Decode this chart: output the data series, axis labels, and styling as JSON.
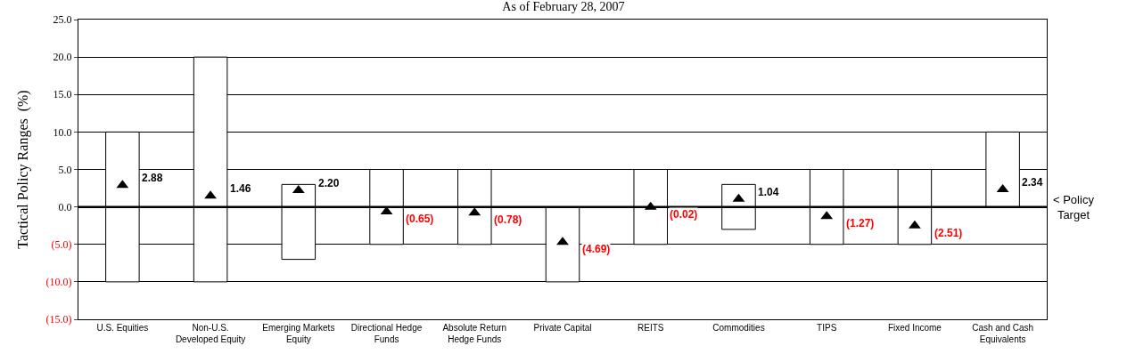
{
  "chart_data": {
    "type": "bar",
    "title": "As of February 28, 2007",
    "ylabel": "Tactical Policy Ranges  (%)",
    "categories": [
      "U.S. Equities",
      "Non-U.S.\nDeveloped Equity",
      "Emerging Markets\nEquity",
      "Directional Hedge\nFunds",
      "Absolute Return\nHedge Funds",
      "Private Capital",
      "REITS",
      "Commodities",
      "TIPS",
      "Fixed Income",
      "Cash and Cash\nEquivalents"
    ],
    "series": [
      {
        "color": "#ffffff",
        "base": [
          -10,
          -10,
          -7,
          -5,
          -5,
          -10,
          -5,
          -3,
          -5,
          -5,
          0
        ],
        "values": [
          20,
          30,
          10,
          10,
          10,
          10,
          10,
          6,
          10,
          10,
          10
        ]
      },
      {
        "type": "scatter",
        "color": "#000000",
        "marker": "triangle",
        "values": [
          2.88,
          1.46,
          2.2,
          -0.65,
          -0.78,
          -4.69,
          -0.02,
          1.04,
          -1.27,
          -2.51,
          2.34
        ],
        "value_labels": [
          "2.88",
          "1.46",
          "2.20",
          "(0.65)",
          "(0.78)",
          "(4.69)",
          "(0.02)",
          "1.04",
          "(1.27)",
          "(2.51)",
          "2.34"
        ]
      }
    ],
    "ylim": [
      -15,
      25
    ],
    "yticks": [
      {
        "value": -15,
        "label": "(15.0)"
      },
      {
        "value": -10,
        "label": "(10.0)"
      },
      {
        "value": -5,
        "label": "(5.0)"
      },
      {
        "value": 0,
        "label": "0.0"
      },
      {
        "value": 5,
        "label": "5.0"
      },
      {
        "value": 10,
        "label": "10.0"
      },
      {
        "value": 15,
        "label": "15.0"
      },
      {
        "value": 20,
        "label": "20.0"
      },
      {
        "value": 25,
        "label": "25.0"
      }
    ],
    "ref_lines": [
      {
        "axis": "y",
        "value": 0,
        "label": "< Policy\nTarget",
        "color": "#000000"
      }
    ],
    "grid": "y"
  }
}
